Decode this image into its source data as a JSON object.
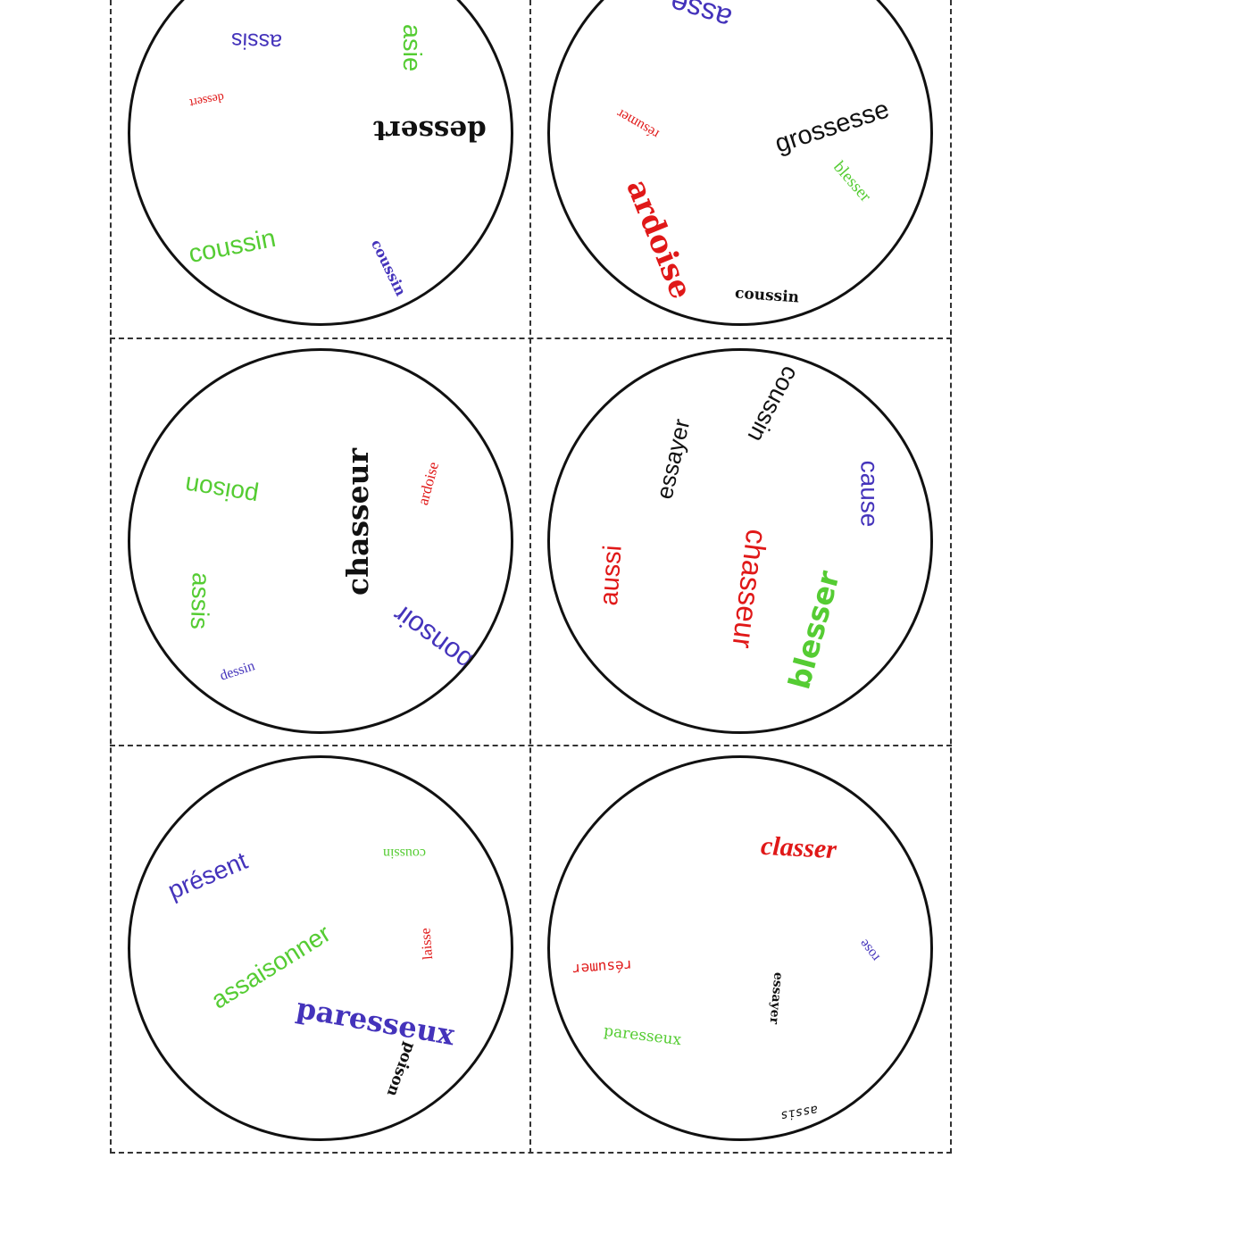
{
  "palette": {
    "red": "#e01818",
    "green": "#55cc33",
    "blue": "#4433bb",
    "black": "#111111",
    "cut_line": "#333333"
  },
  "cards": [
    {
      "words": [
        {
          "text": "assis",
          "color": "blue"
        },
        {
          "text": "asie",
          "color": "green"
        },
        {
          "text": "dessert",
          "color": "red"
        },
        {
          "text": "dessert",
          "color": "black"
        },
        {
          "text": "coussin",
          "color": "green"
        },
        {
          "text": "coussin",
          "color": "blue"
        }
      ]
    },
    {
      "words": [
        {
          "text": "asse",
          "color": "blue"
        },
        {
          "text": "résumer",
          "color": "red"
        },
        {
          "text": "grossesse",
          "color": "black"
        },
        {
          "text": "blesser",
          "color": "green"
        },
        {
          "text": "ardoise",
          "color": "red"
        },
        {
          "text": "coussin",
          "color": "black"
        }
      ]
    },
    {
      "words": [
        {
          "text": "poison",
          "color": "green"
        },
        {
          "text": "chasseur",
          "color": "black"
        },
        {
          "text": "ardoise",
          "color": "red"
        },
        {
          "text": "assis",
          "color": "green"
        },
        {
          "text": "bonsoir",
          "color": "blue"
        },
        {
          "text": "dessin",
          "color": "blue"
        }
      ]
    },
    {
      "words": [
        {
          "text": "coussin",
          "color": "black"
        },
        {
          "text": "essayer",
          "color": "black"
        },
        {
          "text": "cause",
          "color": "blue"
        },
        {
          "text": "aussi",
          "color": "red"
        },
        {
          "text": "chasseur",
          "color": "red"
        },
        {
          "text": "blesser",
          "color": "green"
        }
      ]
    },
    {
      "words": [
        {
          "text": "présent",
          "color": "blue"
        },
        {
          "text": "coussin",
          "color": "green"
        },
        {
          "text": "assaisonner",
          "color": "green"
        },
        {
          "text": "laisse",
          "color": "red"
        },
        {
          "text": "paresseux",
          "color": "blue"
        },
        {
          "text": "poison",
          "color": "black"
        }
      ]
    },
    {
      "words": [
        {
          "text": "classer",
          "color": "red"
        },
        {
          "text": "rose",
          "color": "blue"
        },
        {
          "text": "résumer",
          "color": "red"
        },
        {
          "text": "essayer",
          "color": "black"
        },
        {
          "text": "paresseux",
          "color": "green"
        },
        {
          "text": "assis",
          "color": "black"
        }
      ]
    }
  ]
}
